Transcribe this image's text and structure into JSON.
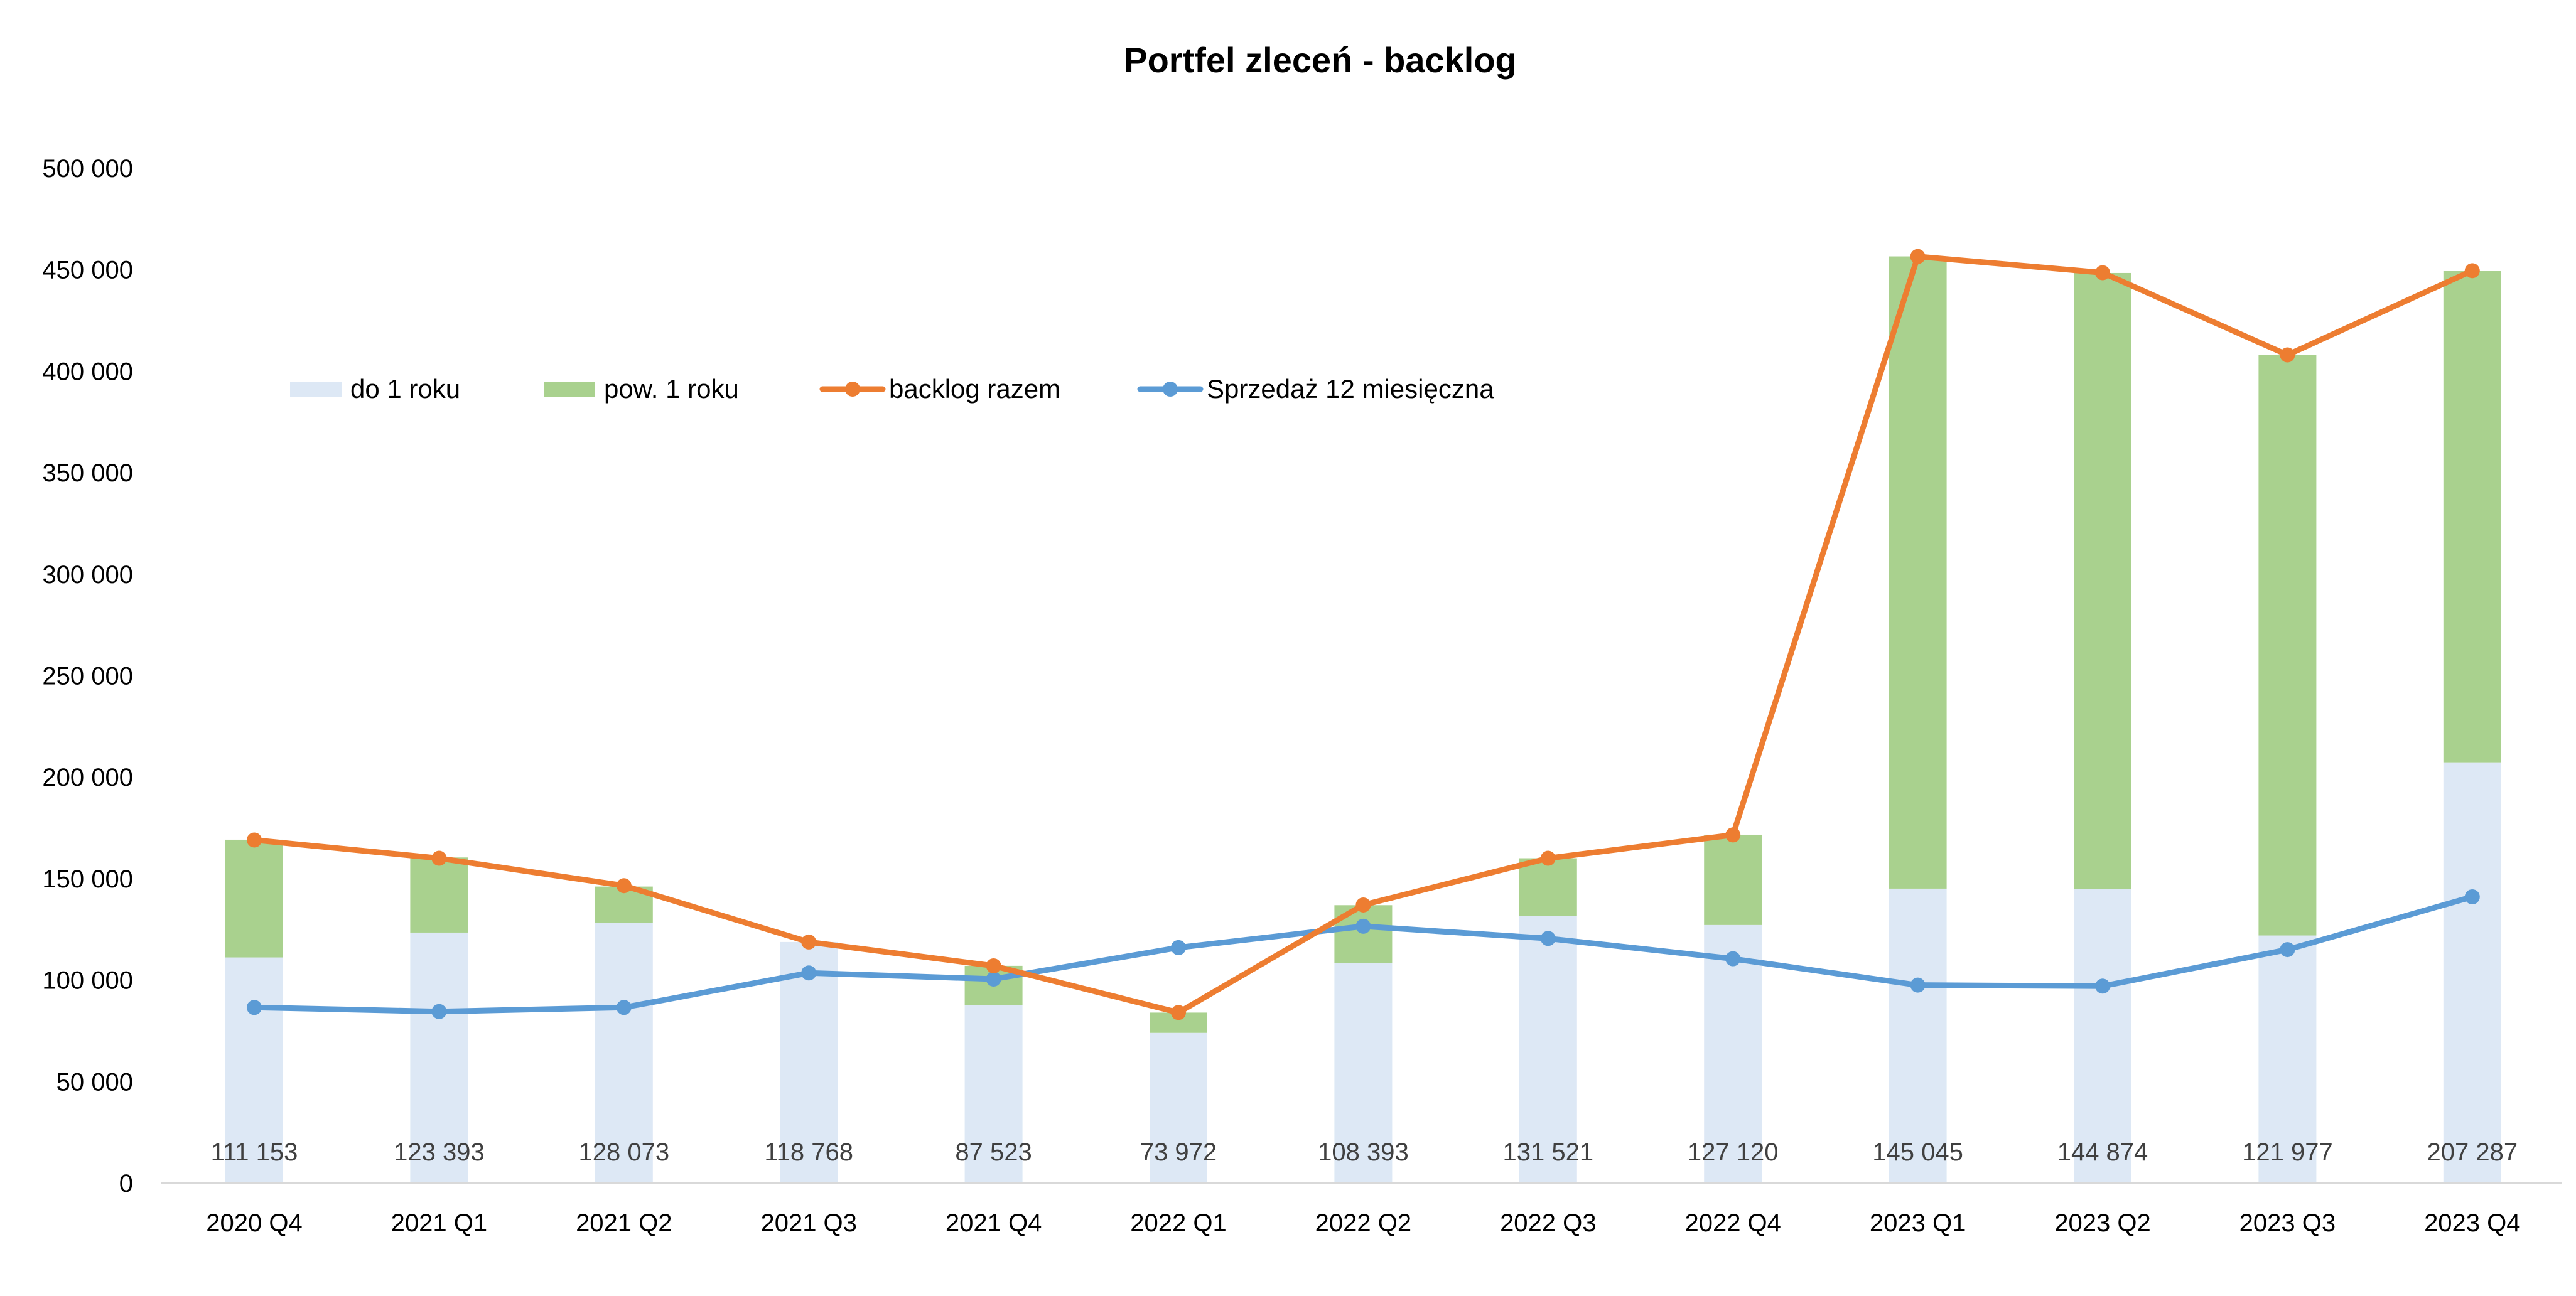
{
  "chart_data": {
    "type": "bar",
    "title": "Portfel zleceń - backlog",
    "xlabel": "",
    "ylabel": "",
    "ylim": [
      0,
      500000
    ],
    "y_ticks": [
      0,
      50000,
      100000,
      150000,
      200000,
      250000,
      300000,
      350000,
      400000,
      450000,
      500000
    ],
    "y_tick_labels": [
      "0",
      "50 000",
      "100 000",
      "150 000",
      "200 000",
      "250 000",
      "300 000",
      "350 000",
      "400 000",
      "450 000",
      "500 000"
    ],
    "grid": false,
    "legend_position": "upper-left inside plot",
    "categories": [
      "2020 Q4",
      "2021 Q1",
      "2021 Q2",
      "2021 Q3",
      "2021 Q4",
      "2022 Q1",
      "2022 Q2",
      "2022 Q3",
      "2022 Q4",
      "2023 Q1",
      "2023 Q2",
      "2023 Q3",
      "2023 Q4"
    ],
    "series": [
      {
        "name": "do 1 roku",
        "kind": "stacked-bar",
        "color": "#dde8f5",
        "values": [
          111153,
          123393,
          128073,
          118768,
          87523,
          73972,
          108393,
          131521,
          127120,
          145045,
          144874,
          121977,
          207287
        ],
        "data_labels": [
          "111 153",
          "123 393",
          "128 073",
          "118 768",
          "87 523",
          "73 972",
          "108 393",
          "131 521",
          "127 120",
          "145 045",
          "144 874",
          "121 977",
          "207 287"
        ]
      },
      {
        "name": "pow. 1 roku",
        "kind": "stacked-bar",
        "color": "#a9d18e",
        "values": [
          58000,
          37000,
          18000,
          0,
          19500,
          10000,
          28500,
          28500,
          44500,
          311500,
          303500,
          286000,
          242000
        ]
      },
      {
        "name": "backlog razem",
        "kind": "line",
        "color": "#ed7d31",
        "values": [
          169000,
          160000,
          146500,
          118768,
          107000,
          84000,
          137000,
          160000,
          171500,
          456500,
          448500,
          408000,
          449500
        ]
      },
      {
        "name": "Sprzedaż 12 miesięczna",
        "kind": "line",
        "color": "#5b9bd5",
        "values": [
          86500,
          84500,
          86500,
          103500,
          100500,
          116000,
          126500,
          120500,
          110500,
          97500,
          97000,
          115000,
          141000
        ]
      }
    ]
  }
}
